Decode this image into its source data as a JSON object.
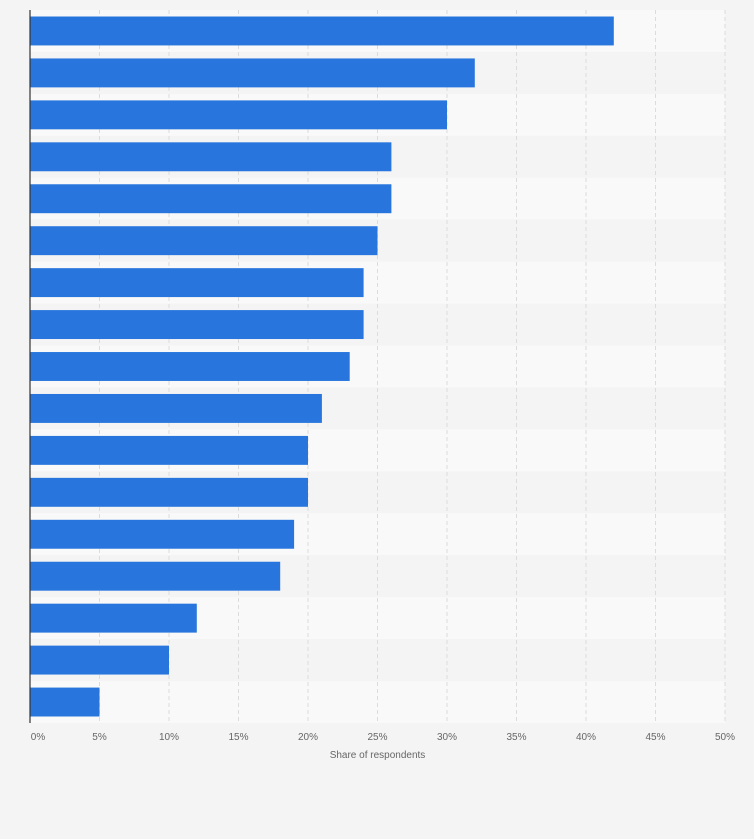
{
  "chart_data": {
    "type": "bar",
    "orientation": "horizontal",
    "categories": [
      "",
      "",
      "",
      "",
      "",
      "",
      "",
      "",
      "",
      "",
      "",
      "",
      "",
      "",
      "",
      "",
      ""
    ],
    "values": [
      42,
      32,
      30,
      26,
      26,
      25,
      24,
      24,
      23,
      21,
      20,
      20,
      19,
      18,
      12,
      10,
      5
    ],
    "xlabel": "Share of respondents",
    "ylabel": "",
    "xlim": [
      0,
      50
    ],
    "xticks": [
      0,
      5,
      10,
      15,
      20,
      25,
      30,
      35,
      40,
      45,
      50
    ],
    "xtick_labels": [
      "0%",
      "5%",
      "10%",
      "15%",
      "20%",
      "25%",
      "30%",
      "35%",
      "40%",
      "45%",
      "50%"
    ],
    "grid": true,
    "legend": "none",
    "colors": {
      "bar": "#2876dd",
      "background": "#f4f4f4",
      "band_light": "#f9f9f9",
      "band_dark": "#f4f4f4",
      "grid": "#dcdcdc",
      "axis": "#333333",
      "text": "#666666"
    }
  }
}
